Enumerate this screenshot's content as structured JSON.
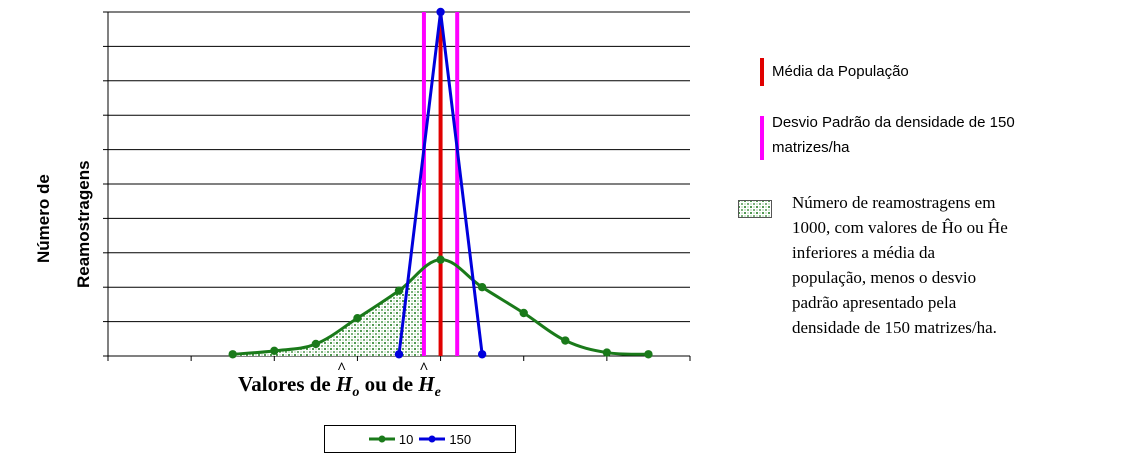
{
  "chart_data": {
    "type": "line",
    "ylabel_lines": [
      "Número de",
      "Reamostragens"
    ],
    "xlabel_parts": {
      "prefix": "Valores de ",
      "h1": "H",
      "sub1": "o",
      "mid": " ou de ",
      "h2": "H",
      "sub2": "e"
    },
    "ylim": [
      0,
      10
    ],
    "xlim": [
      0,
      14
    ],
    "series": [
      {
        "name": "10",
        "color": "#1a7a1a",
        "x": [
          3,
          4,
          5,
          6,
          7,
          8,
          9,
          10,
          11,
          12,
          13
        ],
        "y": [
          0.05,
          0.15,
          0.35,
          1.1,
          1.9,
          2.8,
          2.0,
          1.25,
          0.45,
          0.1,
          0.05
        ]
      },
      {
        "name": "150",
        "color": "#0000dd",
        "x": [
          7,
          8,
          9
        ],
        "y": [
          0.05,
          10.0,
          0.05
        ]
      }
    ],
    "vertical_lines": [
      {
        "x": 8,
        "color": "#e00000"
      },
      {
        "x": 7.6,
        "color": "#ff00ff"
      },
      {
        "x": 8.4,
        "color": "#ff00ff"
      }
    ],
    "shaded_below_x": 7.6
  },
  "legend_items": [
    {
      "label": "10",
      "color": "#1a7a1a"
    },
    {
      "label": "150",
      "color": "#0000dd"
    }
  ],
  "side_legend": {
    "mean_label": "Média da População",
    "mean_color": "#e00000",
    "sd_label_line1": "Desvio Padrão da densidade de 150",
    "sd_label_line2": "matrizes/ha",
    "sd_color": "#ff00ff",
    "note_lines": [
      "Número de reamostragens em",
      "1000, com valores de Ĥo ou Ĥe",
      "inferiores a média da",
      "população, menos o desvio",
      "padrão apresentado pela",
      "densidade de 150 matrizes/ha."
    ]
  }
}
